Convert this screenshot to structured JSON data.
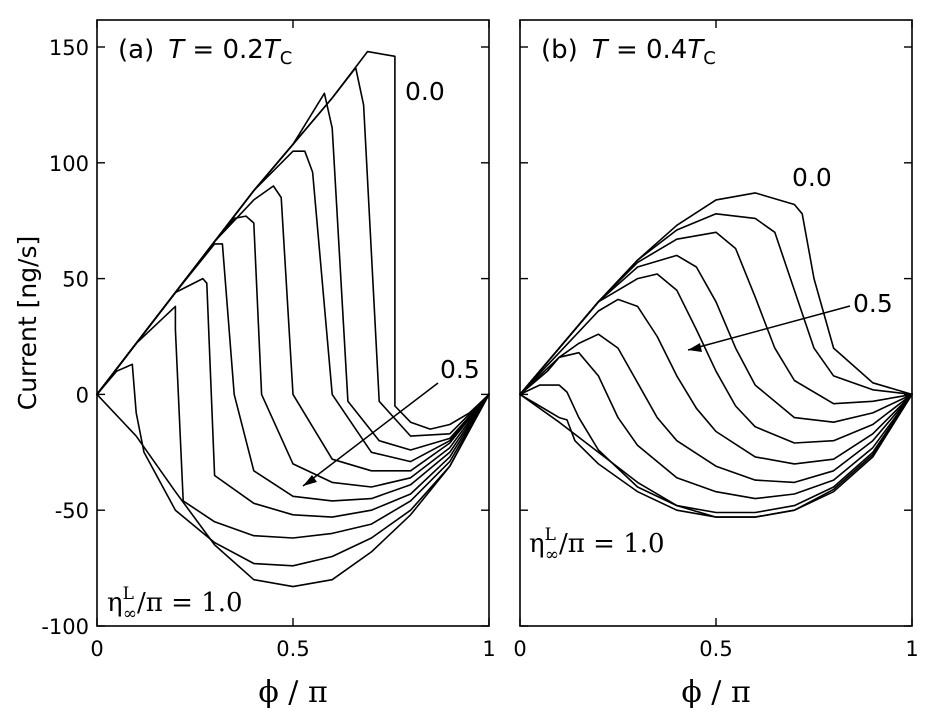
{
  "chart_data": [
    {
      "type": "line",
      "panel": "(a)",
      "title_var": "T",
      "title_eq": " = 0.2",
      "title_unit": "T",
      "title_sub": "C",
      "xlabel": "ϕ / π",
      "ylabel": "Current [ng/s]",
      "xlim": [
        0,
        1
      ],
      "ylim": [
        -100,
        160
      ],
      "xticks": [
        "0",
        "0.5",
        "1"
      ],
      "yticks": [
        "150",
        "100",
        "50",
        "0",
        "-50",
        "-100"
      ],
      "annotations": {
        "top": "0.0",
        "middle": "0.5",
        "bottom_eta": "η",
        "bottom_sup": "L",
        "bottom_sub": "∞",
        "bottom_rest": "/π = 1.0"
      },
      "series": [
        {
          "eta_over_pi": 0.0,
          "x": [
            0,
            0.1,
            0.2,
            0.3,
            0.4,
            0.5,
            0.6,
            0.69,
            0.76,
            0.76,
            0.8,
            0.85,
            0.9,
            0.95,
            1.0
          ],
          "y": [
            0,
            22,
            44,
            66,
            88,
            108,
            128,
            148,
            146,
            -5,
            -12,
            -15,
            -13,
            -8,
            0
          ]
        },
        {
          "eta_over_pi": 0.1,
          "x": [
            0,
            0.1,
            0.2,
            0.3,
            0.4,
            0.5,
            0.6,
            0.66,
            0.68,
            0.72,
            0.8,
            0.9,
            1.0
          ],
          "y": [
            0,
            22,
            44,
            66,
            88,
            108,
            128,
            141,
            125,
            -3,
            -18,
            -17,
            0
          ]
        },
        {
          "eta_over_pi": 0.2,
          "x": [
            0,
            0.1,
            0.2,
            0.3,
            0.4,
            0.5,
            0.58,
            0.6,
            0.64,
            0.72,
            0.8,
            0.9,
            1.0
          ],
          "y": [
            0,
            22,
            44,
            66,
            88,
            108,
            130,
            115,
            -3,
            -20,
            -24,
            -19,
            0
          ]
        },
        {
          "eta_over_pi": 0.3,
          "x": [
            0,
            0.1,
            0.2,
            0.3,
            0.4,
            0.5,
            0.53,
            0.55,
            0.6,
            0.7,
            0.8,
            0.9,
            1.0
          ],
          "y": [
            0,
            22,
            44,
            66,
            88,
            105,
            105,
            96,
            0,
            -25,
            -29,
            -20,
            0
          ]
        },
        {
          "eta_over_pi": 0.4,
          "x": [
            0,
            0.1,
            0.2,
            0.3,
            0.4,
            0.45,
            0.47,
            0.5,
            0.6,
            0.7,
            0.8,
            0.9,
            1.0
          ],
          "y": [
            0,
            22,
            44,
            66,
            84,
            90,
            85,
            0,
            -28,
            -33,
            -33,
            -21,
            0
          ]
        },
        {
          "eta_over_pi": 0.5,
          "x": [
            0,
            0.1,
            0.2,
            0.3,
            0.35,
            0.38,
            0.4,
            0.42,
            0.5,
            0.6,
            0.7,
            0.8,
            0.9,
            1.0
          ],
          "y": [
            0,
            22,
            44,
            66,
            76,
            77,
            74,
            0,
            -30,
            -38,
            -40,
            -36,
            -23,
            0
          ]
        },
        {
          "eta_over_pi": 0.6,
          "x": [
            0,
            0.1,
            0.2,
            0.3,
            0.32,
            0.35,
            0.4,
            0.5,
            0.6,
            0.7,
            0.8,
            0.9,
            1.0
          ],
          "y": [
            0,
            22,
            44,
            65,
            65,
            0,
            -33,
            -44,
            -46,
            -45,
            -39,
            -25,
            0
          ]
        },
        {
          "eta_over_pi": 0.7,
          "x": [
            0,
            0.1,
            0.2,
            0.27,
            0.28,
            0.3,
            0.4,
            0.5,
            0.6,
            0.7,
            0.8,
            0.9,
            1.0
          ],
          "y": [
            0,
            22,
            44,
            50,
            48,
            -35,
            -47,
            -52,
            -53,
            -50,
            -43,
            -27,
            0
          ]
        },
        {
          "eta_over_pi": 0.8,
          "x": [
            0,
            0.1,
            0.2,
            0.2,
            0.22,
            0.3,
            0.4,
            0.5,
            0.6,
            0.7,
            0.8,
            0.9,
            1.0
          ],
          "y": [
            0,
            22,
            38,
            28,
            -46,
            -55,
            -61,
            -62,
            -60,
            -56,
            -46,
            -29,
            0
          ]
        },
        {
          "eta_over_pi": 0.9,
          "x": [
            0,
            0.05,
            0.09,
            0.1,
            0.12,
            0.2,
            0.3,
            0.4,
            0.5,
            0.6,
            0.7,
            0.8,
            0.9,
            1.0
          ],
          "y": [
            0,
            10,
            13,
            -8,
            -25,
            -50,
            -64,
            -73,
            -74,
            -70,
            -62,
            -50,
            -31,
            0
          ]
        },
        {
          "eta_over_pi": 1.0,
          "x": [
            0,
            0.1,
            0.2,
            0.3,
            0.4,
            0.5,
            0.6,
            0.7,
            0.8,
            0.9,
            1.0
          ],
          "y": [
            0,
            -18,
            -42,
            -65,
            -80,
            -83,
            -80,
            -68,
            -52,
            -31,
            0
          ]
        }
      ]
    },
    {
      "type": "line",
      "panel": "(b)",
      "title_var": "T",
      "title_eq": " = 0.4",
      "title_unit": "T",
      "title_sub": "C",
      "xlabel": "ϕ / π",
      "xlim": [
        0,
        1
      ],
      "ylim": [
        -100,
        160
      ],
      "xticks": [
        "0",
        "0.5",
        "1"
      ],
      "annotations": {
        "top": "0.0",
        "middle": "0.5",
        "bottom_eta": "η",
        "bottom_sup": "L",
        "bottom_sub": "∞",
        "bottom_rest": "/π = 1.0"
      },
      "series": [
        {
          "eta_over_pi": 0.0,
          "x": [
            0,
            0.1,
            0.2,
            0.3,
            0.4,
            0.5,
            0.6,
            0.7,
            0.72,
            0.75,
            0.8,
            0.9,
            1.0
          ],
          "y": [
            0,
            20,
            40,
            58,
            73,
            84,
            87,
            82,
            78,
            50,
            20,
            5,
            0
          ]
        },
        {
          "eta_over_pi": 0.1,
          "x": [
            0,
            0.1,
            0.2,
            0.3,
            0.4,
            0.5,
            0.6,
            0.65,
            0.7,
            0.75,
            0.8,
            0.9,
            1.0
          ],
          "y": [
            0,
            20,
            40,
            58,
            71,
            78,
            76,
            70,
            45,
            20,
            8,
            2,
            0
          ]
        },
        {
          "eta_over_pi": 0.2,
          "x": [
            0,
            0.1,
            0.2,
            0.3,
            0.4,
            0.5,
            0.55,
            0.6,
            0.65,
            0.7,
            0.8,
            0.9,
            1.0
          ],
          "y": [
            0,
            20,
            40,
            57,
            67,
            70,
            63,
            42,
            20,
            6,
            -4,
            -3,
            0
          ]
        },
        {
          "eta_over_pi": 0.3,
          "x": [
            0,
            0.1,
            0.2,
            0.3,
            0.4,
            0.45,
            0.5,
            0.55,
            0.6,
            0.7,
            0.8,
            0.9,
            1.0
          ],
          "y": [
            0,
            20,
            40,
            55,
            60,
            55,
            40,
            20,
            4,
            -10,
            -12,
            -8,
            0
          ]
        },
        {
          "eta_over_pi": 0.4,
          "x": [
            0,
            0.1,
            0.2,
            0.3,
            0.35,
            0.4,
            0.45,
            0.5,
            0.55,
            0.6,
            0.7,
            0.8,
            0.9,
            1.0
          ],
          "y": [
            0,
            20,
            40,
            50,
            52,
            45,
            28,
            10,
            -5,
            -14,
            -21,
            -20,
            -13,
            0
          ]
        },
        {
          "eta_over_pi": 0.5,
          "x": [
            0,
            0.1,
            0.2,
            0.25,
            0.3,
            0.35,
            0.4,
            0.45,
            0.5,
            0.6,
            0.7,
            0.8,
            0.9,
            1.0
          ],
          "y": [
            0,
            18,
            36,
            41,
            38,
            25,
            8,
            -6,
            -16,
            -27,
            -30,
            -28,
            -17,
            0
          ]
        },
        {
          "eta_over_pi": 0.6,
          "x": [
            0,
            0.1,
            0.15,
            0.2,
            0.25,
            0.3,
            0.35,
            0.4,
            0.5,
            0.6,
            0.7,
            0.8,
            0.9,
            1.0
          ],
          "y": [
            0,
            16,
            22,
            26,
            20,
            5,
            -10,
            -20,
            -31,
            -37,
            -38,
            -33,
            -20,
            0
          ]
        },
        {
          "eta_over_pi": 0.7,
          "x": [
            0,
            0.07,
            0.1,
            0.15,
            0.2,
            0.25,
            0.3,
            0.4,
            0.5,
            0.6,
            0.7,
            0.8,
            0.9,
            1.0
          ],
          "y": [
            0,
            10,
            16,
            18,
            8,
            -10,
            -22,
            -36,
            -42,
            -45,
            -43,
            -37,
            -23,
            0
          ]
        },
        {
          "eta_over_pi": 0.8,
          "x": [
            0,
            0.05,
            0.1,
            0.12,
            0.15,
            0.2,
            0.3,
            0.4,
            0.5,
            0.6,
            0.7,
            0.8,
            0.9,
            1.0
          ],
          "y": [
            0,
            4,
            4,
            1,
            -10,
            -24,
            -40,
            -48,
            -51,
            -51,
            -48,
            -40,
            -25,
            0
          ]
        },
        {
          "eta_over_pi": 0.9,
          "x": [
            0,
            0.05,
            0.1,
            0.12,
            0.14,
            0.2,
            0.3,
            0.4,
            0.5,
            0.6,
            0.7,
            0.8,
            0.9,
            1.0
          ],
          "y": [
            0,
            -5,
            -10,
            -11,
            -20,
            -30,
            -42,
            -50,
            -53,
            -53,
            -50,
            -41,
            -26,
            0
          ]
        },
        {
          "eta_over_pi": 1.0,
          "x": [
            0,
            0.1,
            0.2,
            0.3,
            0.4,
            0.5,
            0.6,
            0.7,
            0.8,
            0.9,
            1.0
          ],
          "y": [
            0,
            -12,
            -25,
            -38,
            -48,
            -53,
            -53,
            -50,
            -42,
            -27,
            0
          ]
        }
      ]
    }
  ]
}
